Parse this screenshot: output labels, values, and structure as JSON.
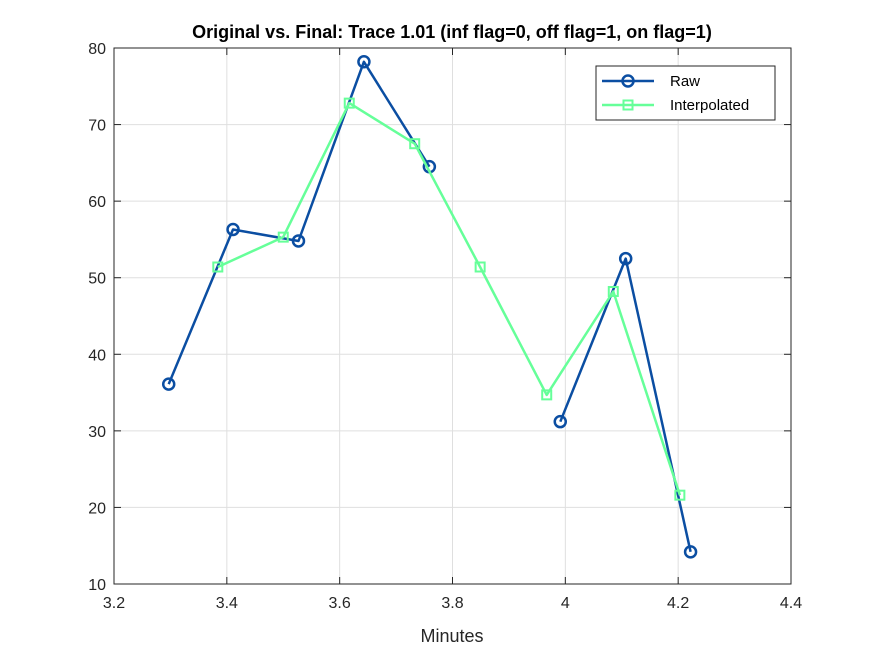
{
  "chart_data": {
    "type": "line",
    "title": "Original vs. Final: Trace 1.01 (inf flag=0, off flag=1, on flag=1)",
    "xlabel": "Minutes",
    "ylabel": "",
    "xlim": [
      3.2,
      4.4
    ],
    "ylim": [
      10,
      80
    ],
    "xticks": [
      3.2,
      3.4,
      3.6,
      3.8,
      4.0,
      4.2,
      4.4
    ],
    "xtick_labels": [
      "3.2",
      "3.4",
      "3.6",
      "3.8",
      "4",
      "4.2",
      "4.4"
    ],
    "yticks": [
      10,
      20,
      30,
      40,
      50,
      60,
      70,
      80
    ],
    "ytick_labels": [
      "10",
      "20",
      "30",
      "40",
      "50",
      "60",
      "70",
      "80"
    ],
    "grid": true,
    "legend_position": "top-right",
    "series": [
      {
        "name": "Raw",
        "color": "#0b4ea2",
        "marker": "circle",
        "segments": [
          {
            "x": [
              3.297,
              3.411,
              3.527,
              3.643,
              3.759
            ],
            "y": [
              36.1,
              56.3,
              54.8,
              78.2,
              64.5
            ]
          },
          {
            "x": [
              3.991,
              4.107,
              4.222
            ],
            "y": [
              31.2,
              52.5,
              14.2
            ]
          }
        ]
      },
      {
        "name": "Interpolated",
        "color": "#66ff99",
        "marker": "square",
        "segments": [
          {
            "x": [
              3.384,
              3.5,
              3.617,
              3.733,
              3.849,
              3.967,
              4.085,
              4.203
            ],
            "y": [
              51.4,
              55.3,
              72.8,
              67.5,
              51.4,
              34.7,
              48.2,
              21.6
            ]
          }
        ]
      }
    ]
  }
}
